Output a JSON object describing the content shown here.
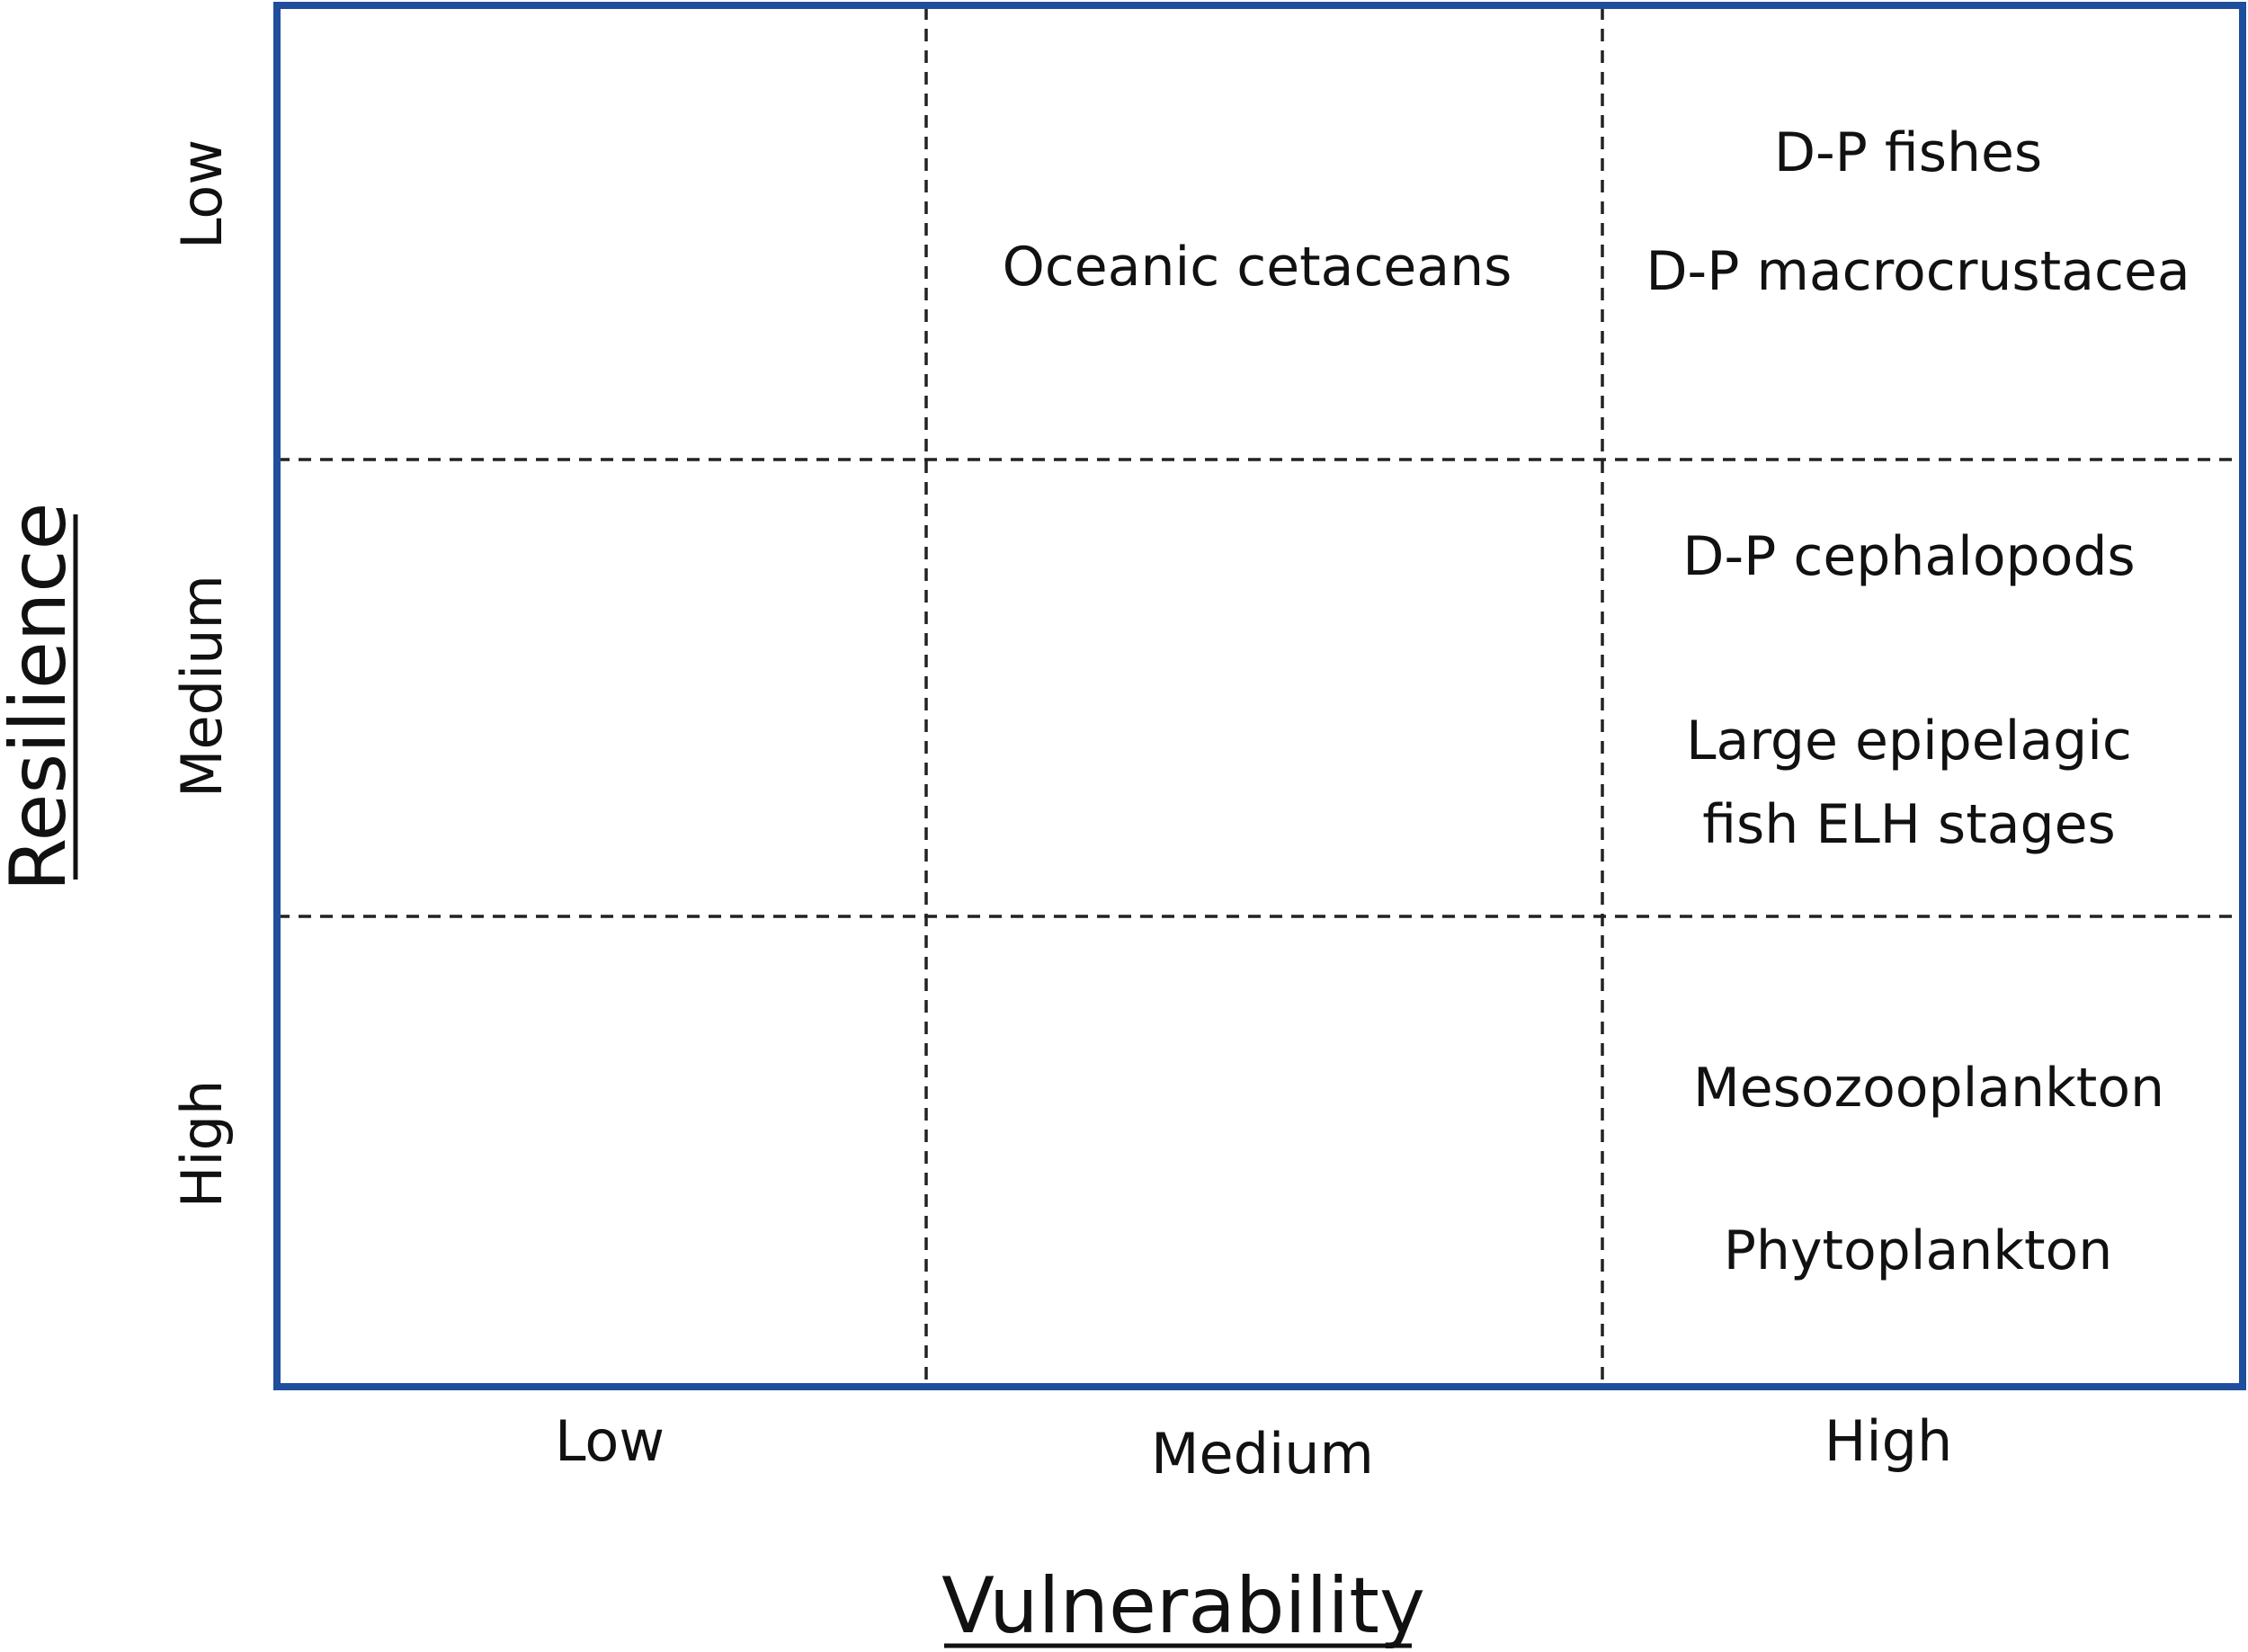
{
  "axes": {
    "x_title": "Vulnerability",
    "y_title": "Resilience",
    "x_levels": [
      "Low",
      "Medium",
      "High"
    ],
    "y_levels": [
      "Low",
      "Medium",
      "High"
    ]
  },
  "colors": {
    "frame": "#1f4e9c",
    "grid": "#222222",
    "text": "#111111"
  },
  "cells": {
    "low_resilience_medium_vulnerability": [
      "Oceanic cetaceans"
    ],
    "low_resilience_high_vulnerability": [
      "D-P fishes",
      "D-P macrocrustacea"
    ],
    "medium_resilience_high_vulnerability": [
      "D-P cephalopods",
      "Large epipelagic",
      "fish ELH stages"
    ],
    "high_resilience_high_vulnerability": [
      "Mesozooplankton",
      "Phytoplankton"
    ]
  }
}
